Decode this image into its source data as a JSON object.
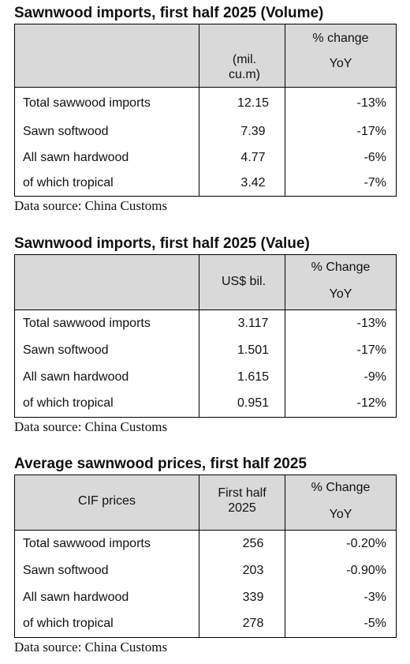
{
  "volume": {
    "title": "Sawnwood imports, first half 2025 (Volume)",
    "unit_line1": "(mil.",
    "unit_line2": "cu.m)",
    "change_label": "% change",
    "change_sub": "YoY",
    "rows": [
      {
        "label": "Total sawwood imports",
        "value": "12.15",
        "change": "-13%"
      },
      {
        "label": "Sawn softwood",
        "value": "7.39",
        "change": "-17%"
      },
      {
        "label": "All sawn hardwood",
        "value": "4.77",
        "change": "-6%"
      },
      {
        "label": "of which tropical",
        "value": "3.42",
        "change": "-7%"
      }
    ],
    "source": "Data source: China Customs"
  },
  "value": {
    "title": "Sawnwood imports, first half 2025 (Value)",
    "unit": "US$ bil.",
    "change_label": "% Change",
    "change_sub": "YoY",
    "rows": [
      {
        "label": "Total sawwood imports",
        "value": "3.117",
        "change": "-13%"
      },
      {
        "label": "Sawn softwood",
        "value": "1.501",
        "change": "-17%"
      },
      {
        "label": "All sawn hardwood",
        "value": "1.615",
        "change": "-9%"
      },
      {
        "label": "of which tropical",
        "value": "0.951",
        "change": "-12%"
      }
    ],
    "source": "Data source: China Customs"
  },
  "prices": {
    "title": "Average sawnwood prices, first half 2025",
    "col1_label": "CIF prices",
    "unit_line1": "First half",
    "unit_line2": "2025",
    "change_label": "% Change",
    "change_sub": "YoY",
    "rows": [
      {
        "label": "Total sawwood imports",
        "value": "256",
        "change": "-0.20%"
      },
      {
        "label": "Sawn softwood",
        "value": "203",
        "change": "-0.90%"
      },
      {
        "label": "All sawn hardwood",
        "value": "339",
        "change": "-3%"
      },
      {
        "label": "of which tropical",
        "value": "278",
        "change": "-5%"
      }
    ],
    "source": "Data source: China Customs"
  }
}
